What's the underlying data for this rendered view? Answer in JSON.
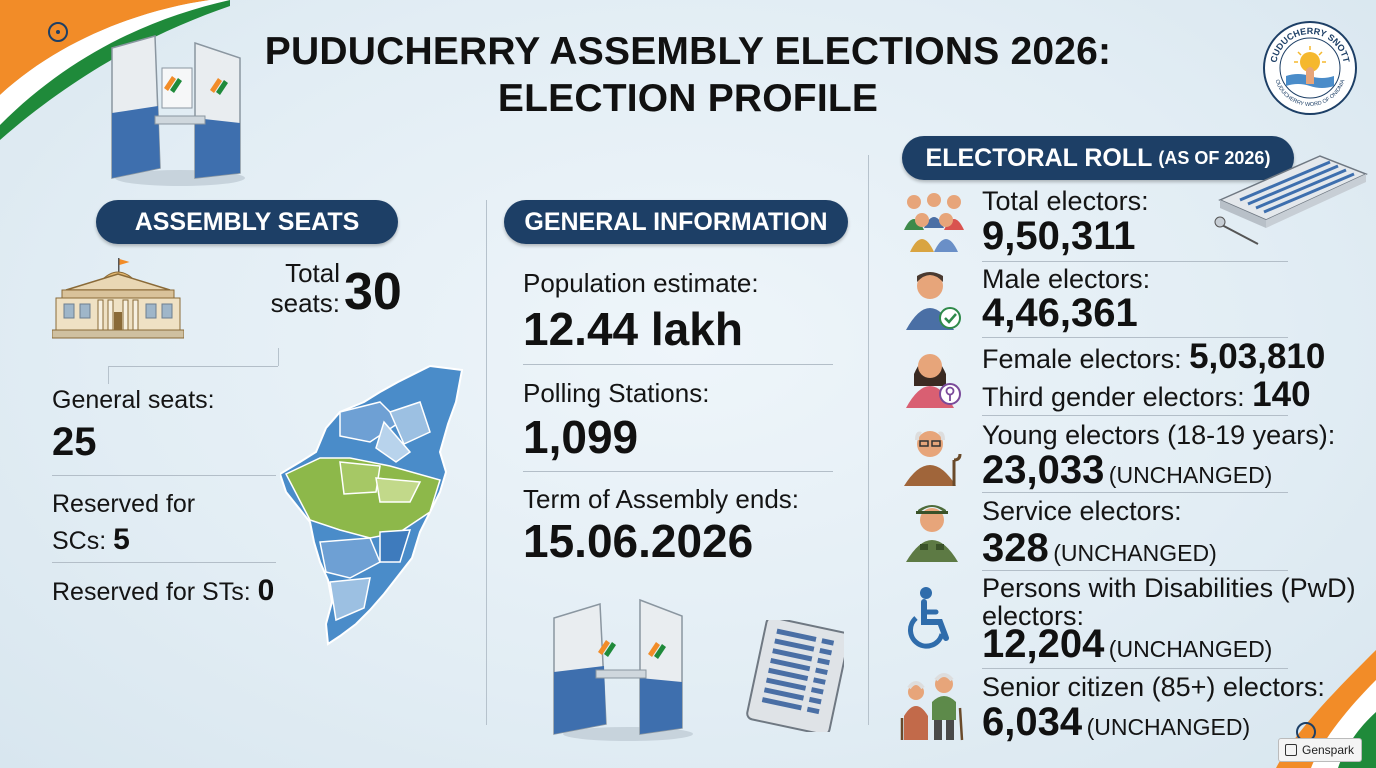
{
  "title": {
    "line1": "PUDUCHERRY ASSEMBLY ELECTIONS 2026:",
    "line2": "ELECTION PROFILE"
  },
  "emblem": {
    "text_top": "CUDUCHERRY SNOTT",
    "text_bottom": "OUDUCHERRY WORD OF ONIDNIA"
  },
  "assembly_seats": {
    "heading": "ASSEMBLY SEATS",
    "total_label_1": "Total",
    "total_label_2": "seats:",
    "total_value": "30",
    "general_label": "General seats:",
    "general_value": "25",
    "sc_label_1": "Reserved for",
    "sc_label_2": "SCs:",
    "sc_value": "5",
    "st_label": "Reserved for STs:",
    "st_value": "0"
  },
  "general_information": {
    "heading": "GENERAL INFORMATION",
    "population_label": "Population estimate:",
    "population_value": "12.44 lakh",
    "polling_label": "Polling Stations:",
    "polling_value": "1,099",
    "term_label": "Term of Assembly ends:",
    "term_value": "15.06.2026"
  },
  "electoral_roll": {
    "heading": "ELECTORAL ROLL",
    "heading_sub": "(AS OF 2026)",
    "unchanged": "(UNCHANGED)",
    "total_label": "Total electors:",
    "total_value": "9,50,311",
    "male_label": "Male electors:",
    "male_value": "4,46,361",
    "female_label": "Female electors:",
    "female_value": "5,03,810",
    "third_label": "Third gender electors:",
    "third_value": "140",
    "young_label": "Young electors (18-19 years):",
    "young_value": "23,033",
    "service_label": "Service electors:",
    "service_value": "328",
    "pwd_label_1": "Persons with Disabilities (PwD)",
    "pwd_label_2": "electors:",
    "pwd_value": "12,204",
    "senior_label": "Senior citizen (85+) electors:",
    "senior_value": "6,034"
  },
  "watermark": {
    "label": "Genspark"
  },
  "colors": {
    "navy": "#1d3f66",
    "saffron": "#f28c28",
    "green": "#1f8a3a",
    "map_blue": "#4a8cc9",
    "map_green": "#8db84a"
  }
}
